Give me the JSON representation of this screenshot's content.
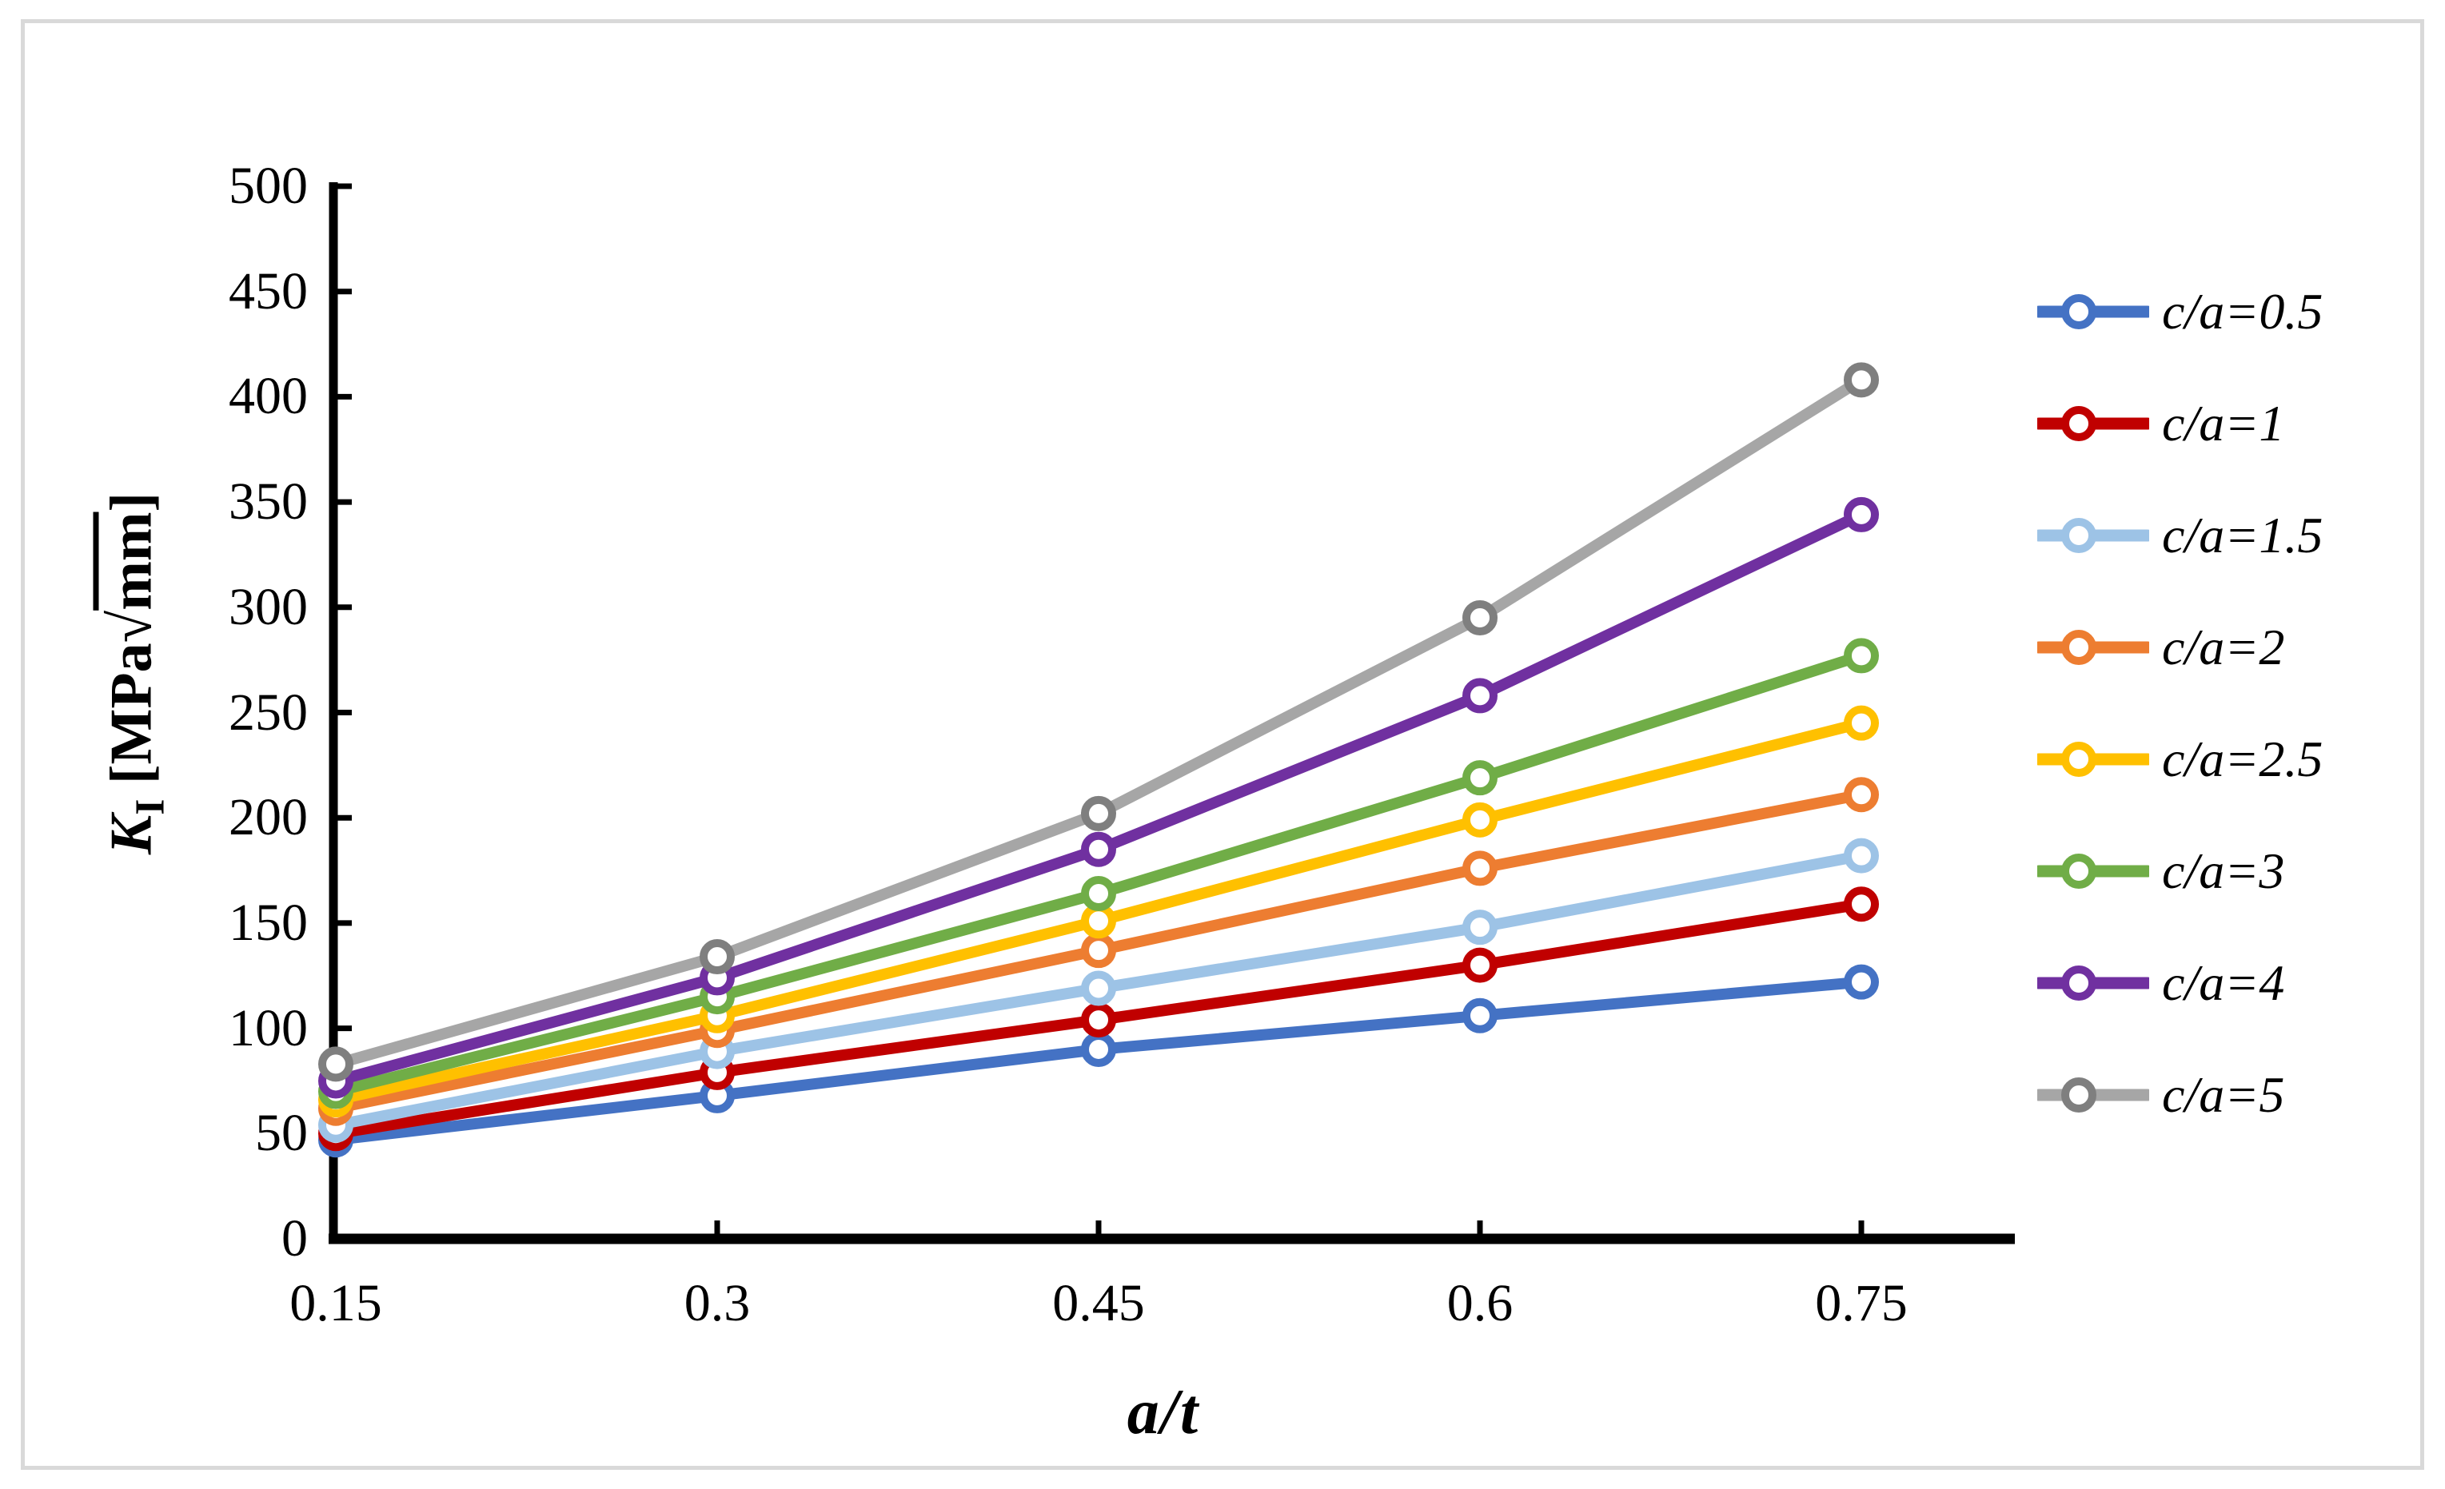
{
  "figure": {
    "background": "#FFFFFF",
    "border_color": "#D9D9D9",
    "axis_color": "#000000"
  },
  "chart_data": {
    "type": "line",
    "title": "",
    "xlabel": "a/t",
    "ylabel": "KI [MPa√mm]",
    "ylabel_parts": {
      "symbol": "K",
      "subscript": "I",
      "unit_open": " [MPa",
      "radical": "√",
      "radicand": "mm",
      "unit_close": "]"
    },
    "x": [
      0.15,
      0.3,
      0.45,
      0.6,
      0.75
    ],
    "x_tick_labels": [
      "0.15",
      "0.3",
      "0.45",
      "0.6",
      "0.75"
    ],
    "y_ticks": [
      0,
      50,
      100,
      150,
      200,
      250,
      300,
      350,
      400,
      450,
      500
    ],
    "y_tick_labels": [
      "0",
      "50",
      "100",
      "150",
      "200",
      "250",
      "300",
      "350",
      "400",
      "450",
      "500"
    ],
    "xlim": [
      0.15,
      0.81
    ],
    "ylim": [
      0,
      500
    ],
    "grid": false,
    "legend_position": "right-middle",
    "marker": "open-circle",
    "series": [
      {
        "name": "c/a=0.5",
        "color": "#4472C4",
        "marker_color": "#4472C4",
        "values": [
          47,
          68,
          90,
          106,
          122
        ]
      },
      {
        "name": "c/a=1",
        "color": "#C00000",
        "marker_color": "#C00000",
        "values": [
          50,
          79,
          104,
          130,
          159
        ]
      },
      {
        "name": "c/a=1.5",
        "color": "#9DC3E6",
        "marker_color": "#9DC3E6",
        "values": [
          54,
          89,
          119,
          148,
          182
        ]
      },
      {
        "name": "c/a=2",
        "color": "#ED7D31",
        "marker_color": "#ED7D31",
        "values": [
          62,
          99,
          137,
          176,
          211
        ]
      },
      {
        "name": "c/a=2.5",
        "color": "#FFC000",
        "marker_color": "#FFC000",
        "values": [
          66,
          106,
          151,
          199,
          245
        ]
      },
      {
        "name": "c/a=3",
        "color": "#70AD47",
        "marker_color": "#70AD47",
        "values": [
          70,
          115,
          164,
          219,
          277
        ]
      },
      {
        "name": "c/a=4",
        "color": "#7030A0",
        "marker_color": "#7030A0",
        "values": [
          75,
          124,
          185,
          258,
          344
        ]
      },
      {
        "name": "c/a=5",
        "color": "#A6A6A6",
        "marker_color": "#7F7F7F",
        "values": [
          83,
          134,
          202,
          295,
          408
        ]
      }
    ]
  }
}
